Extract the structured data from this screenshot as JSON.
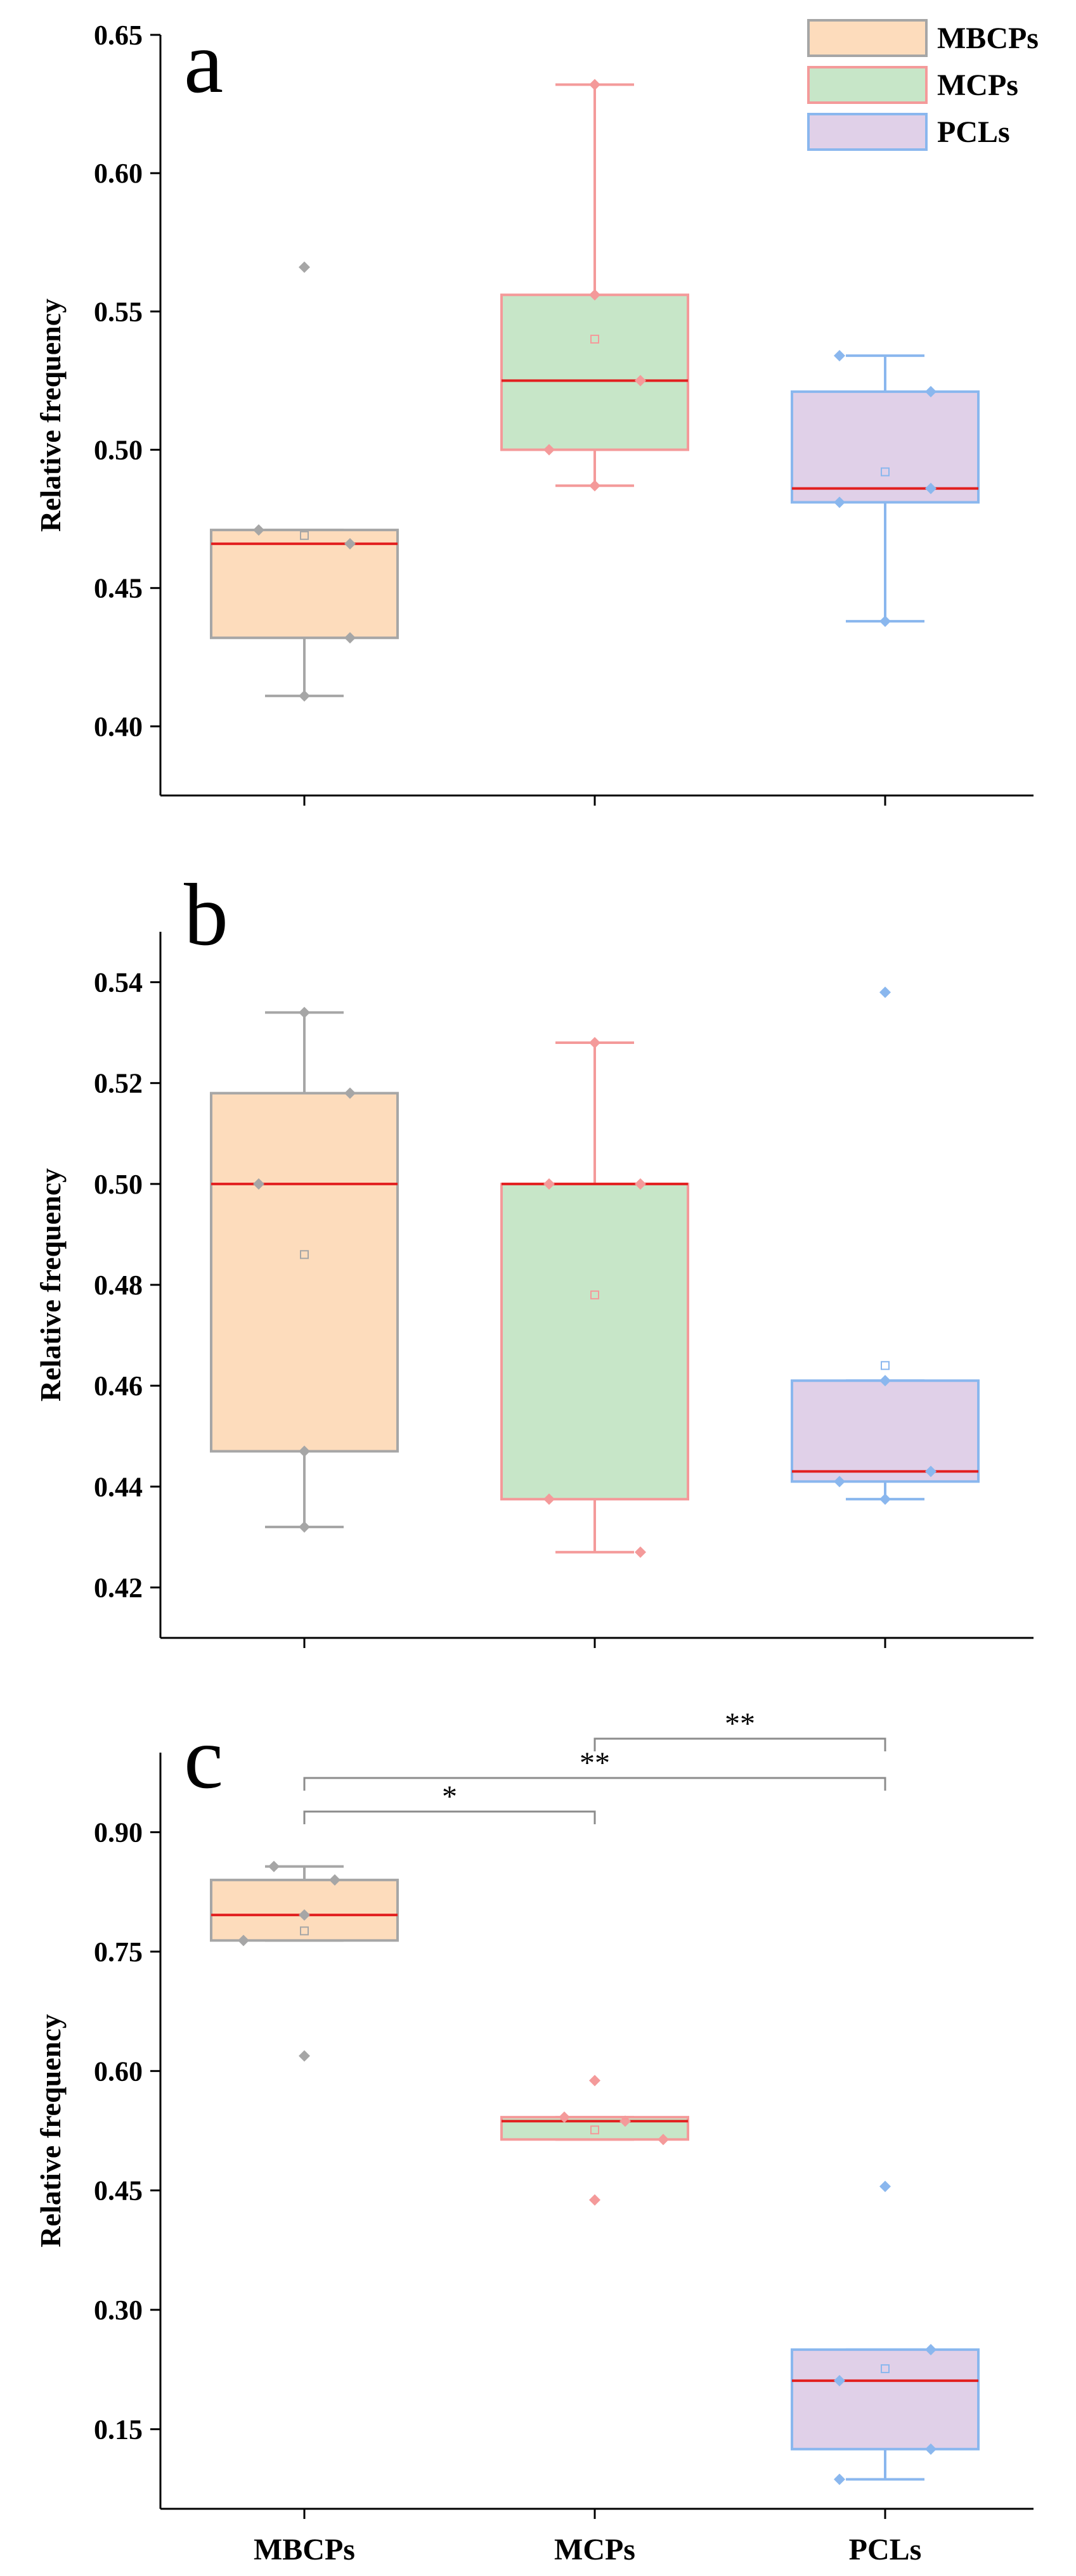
{
  "legend": [
    {
      "name": "MBCPs",
      "fill": "#fddcbc",
      "stroke": "#a6a6a6"
    },
    {
      "name": "MCPs",
      "fill": "#c7e6c8",
      "stroke": "#f49a9a"
    },
    {
      "name": "PCLs",
      "fill": "#e0d0e8",
      "stroke": "#8ab7ee"
    }
  ],
  "colors": {
    "median": "#e21f1f",
    "axis": "#000000",
    "bracket": "#8c8c8c"
  },
  "x_labels": [
    "MBCPs",
    "MCPs",
    "PCLs"
  ],
  "chart_data": [
    {
      "type": "box",
      "panel": "a",
      "ylabel": "Relative frequency",
      "ylim": [
        0.375,
        0.65
      ],
      "yticks": [
        0.4,
        0.45,
        0.5,
        0.55,
        0.6,
        0.65
      ],
      "ytick_labels": [
        "0.40",
        "0.45",
        "0.50",
        "0.55",
        "0.60",
        "0.65"
      ],
      "categories": [
        "MBCPs",
        "MCPs",
        "PCLs"
      ],
      "boxes": [
        {
          "whisker_low": 0.411,
          "q1": 0.432,
          "median": 0.466,
          "q3": 0.471,
          "whisker_high": 0.471,
          "mean": 0.469,
          "points": [
            [
              -0.3,
              0.471
            ],
            [
              0.3,
              0.466
            ],
            [
              0.3,
              0.432
            ],
            [
              0.0,
              0.411
            ],
            [
              0.0,
              0.566
            ]
          ]
        },
        {
          "whisker_low": 0.487,
          "q1": 0.5,
          "median": 0.525,
          "q3": 0.556,
          "whisker_high": 0.632,
          "mean": 0.54,
          "points": [
            [
              0.0,
              0.632
            ],
            [
              0.0,
              0.556
            ],
            [
              0.3,
              0.525
            ],
            [
              -0.3,
              0.5
            ],
            [
              0.0,
              0.487
            ]
          ]
        },
        {
          "whisker_low": 0.438,
          "q1": 0.481,
          "median": 0.486,
          "q3": 0.521,
          "whisker_high": 0.534,
          "mean": 0.492,
          "points": [
            [
              -0.3,
              0.534
            ],
            [
              0.3,
              0.521
            ],
            [
              0.3,
              0.486
            ],
            [
              -0.3,
              0.481
            ],
            [
              0.0,
              0.438
            ]
          ]
        }
      ],
      "significance": []
    },
    {
      "type": "box",
      "panel": "b",
      "ylabel": "Relative frequency",
      "ylim": [
        0.41,
        0.55
      ],
      "yticks": [
        0.42,
        0.44,
        0.46,
        0.48,
        0.5,
        0.52,
        0.54
      ],
      "ytick_labels": [
        "0.42",
        "0.44",
        "0.46",
        "0.48",
        "0.50",
        "0.52",
        "0.54"
      ],
      "categories": [
        "MBCPs",
        "MCPs",
        "PCLs"
      ],
      "boxes": [
        {
          "whisker_low": 0.432,
          "q1": 0.447,
          "median": 0.5,
          "q3": 0.518,
          "whisker_high": 0.534,
          "mean": 0.486,
          "points": [
            [
              0.0,
              0.534
            ],
            [
              0.3,
              0.518
            ],
            [
              -0.3,
              0.5
            ],
            [
              0.0,
              0.447
            ],
            [
              0.0,
              0.432
            ]
          ]
        },
        {
          "whisker_low": 0.427,
          "q1": 0.4375,
          "median": 0.5,
          "q3": 0.5,
          "whisker_high": 0.528,
          "mean": 0.478,
          "points": [
            [
              0.0,
              0.528
            ],
            [
              -0.3,
              0.5
            ],
            [
              0.3,
              0.5
            ],
            [
              -0.3,
              0.4375
            ],
            [
              0.3,
              0.427
            ]
          ]
        },
        {
          "whisker_low": 0.4375,
          "q1": 0.441,
          "median": 0.443,
          "q3": 0.461,
          "whisker_high": 0.461,
          "mean": 0.464,
          "points": [
            [
              0.0,
              0.538
            ],
            [
              0.0,
              0.461
            ],
            [
              0.3,
              0.443
            ],
            [
              -0.3,
              0.441
            ],
            [
              0.0,
              0.4375
            ]
          ]
        }
      ],
      "significance": []
    },
    {
      "type": "box",
      "panel": "c",
      "ylabel": "Relative frequency",
      "ylim": [
        0.05,
        1.0
      ],
      "yticks": [
        0.15,
        0.3,
        0.45,
        0.6,
        0.75,
        0.9
      ],
      "ytick_labels": [
        "0.15",
        "0.30",
        "0.45",
        "0.60",
        "0.75",
        "0.90"
      ],
      "categories": [
        "MBCPs",
        "MCPs",
        "PCLs"
      ],
      "boxes": [
        {
          "whisker_low": 0.764,
          "q1": 0.764,
          "median": 0.796,
          "q3": 0.84,
          "whisker_high": 0.857,
          "mean": 0.776,
          "points": [
            [
              -0.2,
              0.857
            ],
            [
              0.2,
              0.84
            ],
            [
              0.0,
              0.796
            ],
            [
              -0.4,
              0.764
            ],
            [
              0.0,
              0.619
            ]
          ]
        },
        {
          "whisker_low": 0.514,
          "q1": 0.514,
          "median": 0.537,
          "q3": 0.542,
          "whisker_high": 0.542,
          "mean": 0.526,
          "points": [
            [
              0.0,
              0.588
            ],
            [
              -0.2,
              0.542
            ],
            [
              0.2,
              0.537
            ],
            [
              0.45,
              0.514
            ],
            [
              0.0,
              0.438
            ]
          ]
        },
        {
          "whisker_low": 0.087,
          "q1": 0.125,
          "median": 0.211,
          "q3": 0.25,
          "whisker_high": 0.25,
          "mean": 0.226,
          "points": [
            [
              0.0,
              0.455
            ],
            [
              0.3,
              0.25
            ],
            [
              -0.3,
              0.211
            ],
            [
              0.3,
              0.125
            ],
            [
              -0.3,
              0.087
            ]
          ]
        }
      ],
      "significance": [
        {
          "from": 1,
          "to": 2,
          "label": "**",
          "level": 3
        },
        {
          "from": 0,
          "to": 2,
          "label": "**",
          "level": 2
        },
        {
          "from": 0,
          "to": 1,
          "label": "*",
          "level": 1
        }
      ]
    }
  ]
}
